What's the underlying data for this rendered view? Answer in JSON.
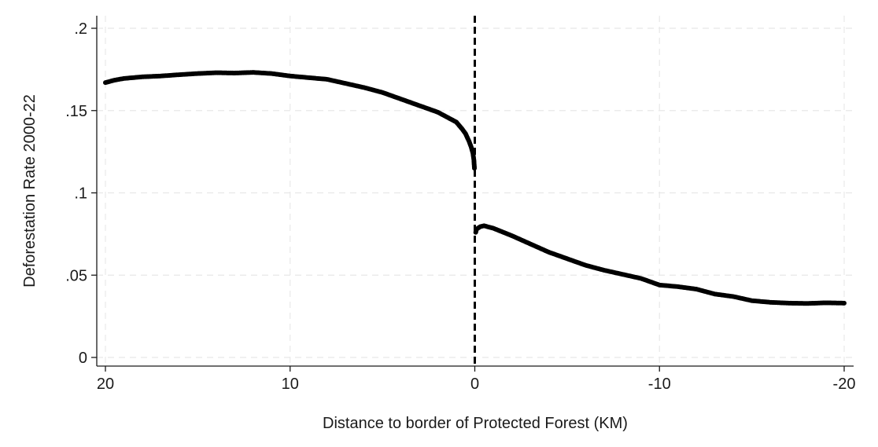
{
  "chart_data": {
    "type": "scatter",
    "title": "",
    "xlabel": "Distance to border of Protected Forest (KM)",
    "ylabel": "Deforestation Rate 2000-22",
    "xlim": [
      20,
      -20
    ],
    "x_reversed": true,
    "ylim": [
      0,
      0.2
    ],
    "x_ticks": [
      20,
      10,
      0,
      -10,
      -20
    ],
    "x_tick_labels": [
      "20",
      "10",
      "0",
      "-10",
      "-20"
    ],
    "y_ticks": [
      0,
      0.05,
      0.1,
      0.15,
      0.2
    ],
    "y_tick_labels": [
      "0",
      ".05",
      ".1",
      ".15",
      ".2"
    ],
    "grid": true,
    "vertical_line": {
      "x": 0,
      "style": "dashed",
      "color": "#000000"
    },
    "series": [
      {
        "color": "#000000",
        "points": [
          [
            20,
            0.167
          ],
          [
            19.5,
            0.1685
          ],
          [
            19,
            0.1695
          ],
          [
            18.5,
            0.17
          ],
          [
            18,
            0.1705
          ],
          [
            17,
            0.171
          ],
          [
            16,
            0.1718
          ],
          [
            15,
            0.1725
          ],
          [
            14,
            0.173
          ],
          [
            13,
            0.1728
          ],
          [
            12,
            0.1732
          ],
          [
            11,
            0.1725
          ],
          [
            10,
            0.171
          ],
          [
            9,
            0.17
          ],
          [
            8,
            0.169
          ],
          [
            7,
            0.1665
          ],
          [
            6,
            0.164
          ],
          [
            5,
            0.161
          ],
          [
            4,
            0.157
          ],
          [
            3,
            0.153
          ],
          [
            2,
            0.149
          ],
          [
            1.5,
            0.146
          ],
          [
            1,
            0.143
          ],
          [
            0.7,
            0.139
          ],
          [
            0.5,
            0.136
          ],
          [
            0.3,
            0.131
          ],
          [
            0.2,
            0.128
          ],
          [
            0.1,
            0.124
          ],
          [
            0.05,
            0.12
          ],
          [
            0.02,
            0.115
          ]
        ]
      },
      {
        "color": "#000000",
        "points": [
          [
            -0.05,
            0.076
          ],
          [
            -0.1,
            0.078
          ],
          [
            -0.3,
            0.0795
          ],
          [
            -0.5,
            0.08
          ],
          [
            -1,
            0.0785
          ],
          [
            -2,
            0.074
          ],
          [
            -3,
            0.069
          ],
          [
            -4,
            0.064
          ],
          [
            -5,
            0.06
          ],
          [
            -6,
            0.056
          ],
          [
            -7,
            0.053
          ],
          [
            -8,
            0.0505
          ],
          [
            -9,
            0.048
          ],
          [
            -10,
            0.044
          ],
          [
            -11,
            0.043
          ],
          [
            -12,
            0.0415
          ],
          [
            -13,
            0.0385
          ],
          [
            -14,
            0.037
          ],
          [
            -15,
            0.0345
          ],
          [
            -16,
            0.0335
          ],
          [
            -17,
            0.033
          ],
          [
            -18,
            0.0328
          ],
          [
            -19,
            0.0332
          ],
          [
            -20,
            0.033
          ]
        ]
      }
    ]
  }
}
